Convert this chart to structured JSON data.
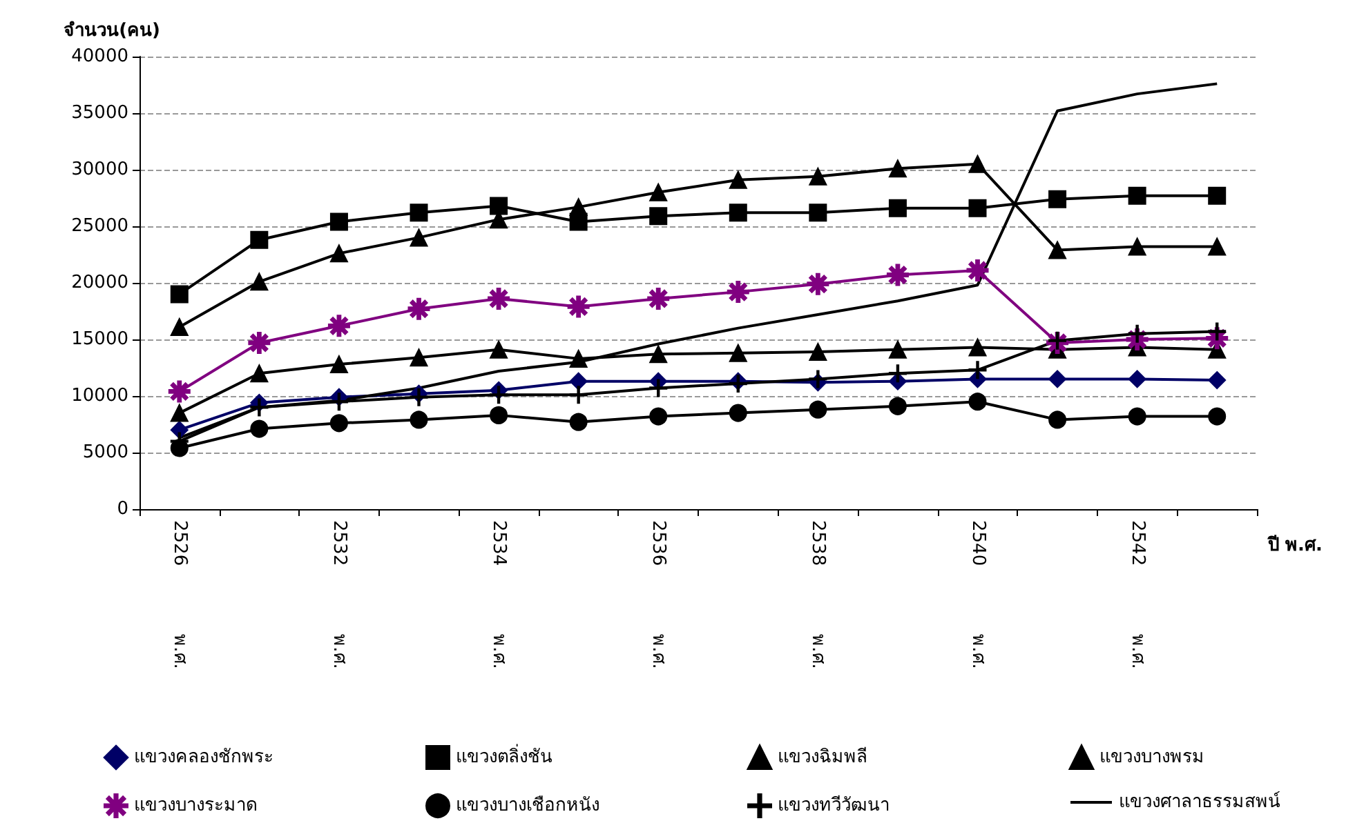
{
  "chart_data": {
    "type": "line",
    "ylabel": "จำนวน(คน)",
    "xlabel": "ปี พ.ศ.",
    "categories": [
      "2526 พ.ศ.",
      null,
      "2532 พ.ศ.",
      null,
      "2534 พ.ศ.",
      null,
      "2536 พ.ศ.",
      null,
      "2538 พ.ศ.",
      null,
      "2540 พ.ศ.",
      null,
      "2542 พ.ศ.",
      null
    ],
    "ylim": [
      0,
      40000
    ],
    "yticks": [
      0,
      5000,
      10000,
      15000,
      20000,
      25000,
      30000,
      35000,
      40000
    ],
    "grid": "y",
    "legend": "bottom",
    "line_style": "solid",
    "series": [
      {
        "name": "แขวงคลองชักพระ",
        "color": "#000066",
        "marker": "diamond",
        "values": [
          7000,
          9400,
          9900,
          10200,
          10500,
          11300,
          11300,
          11300,
          11200,
          11300,
          11500,
          11500,
          11500,
          11400
        ]
      },
      {
        "name": "แขวงตลิ่งชัน",
        "color": "#000000",
        "marker": "square",
        "values": [
          19000,
          23800,
          25400,
          26200,
          26800,
          25400,
          25900,
          26200,
          26200,
          26600,
          26600,
          27400,
          27700,
          27700
        ]
      },
      {
        "name": "แขวงฉิมพลี",
        "color": "#000000",
        "marker": "triangle",
        "values": [
          16100,
          20100,
          22600,
          24000,
          25600,
          26700,
          28000,
          29100,
          29400,
          30100,
          30500,
          22900,
          23200,
          23200
        ]
      },
      {
        "name": "แขวงบางพรม",
        "color": "#000000",
        "marker": "triangle",
        "values": [
          8500,
          12000,
          12800,
          13400,
          14100,
          13300,
          13700,
          13800,
          13900,
          14100,
          14300,
          14100,
          14300,
          14100
        ]
      },
      {
        "name": "แขวงบางระมาด",
        "color": "#800080",
        "marker": "star",
        "values": [
          10400,
          14700,
          16200,
          17700,
          18600,
          17900,
          18600,
          19200,
          19900,
          20700,
          21100,
          14700,
          15000,
          15100
        ]
      },
      {
        "name": "แขวงบางเชือกหนัง",
        "color": "#000000",
        "marker": "circle",
        "values": [
          5400,
          7100,
          7600,
          7900,
          8300,
          7700,
          8200,
          8500,
          8800,
          9100,
          9500,
          7900,
          8200,
          8200
        ]
      },
      {
        "name": "แขวงทวีวัฒนา",
        "color": "#000000",
        "marker": "cross",
        "values": [
          6000,
          9000,
          9500,
          9900,
          10100,
          10100,
          10700,
          11100,
          11500,
          12000,
          12300,
          14900,
          15500,
          15700
        ]
      },
      {
        "name": "แขวงศาลาธรรมสพน์",
        "color": "#000000",
        "marker": "none",
        "values": [
          6300,
          9000,
          9600,
          10700,
          12200,
          13000,
          14600,
          16000,
          17200,
          18400,
          19800,
          35200,
          36700,
          37600
        ]
      }
    ]
  }
}
